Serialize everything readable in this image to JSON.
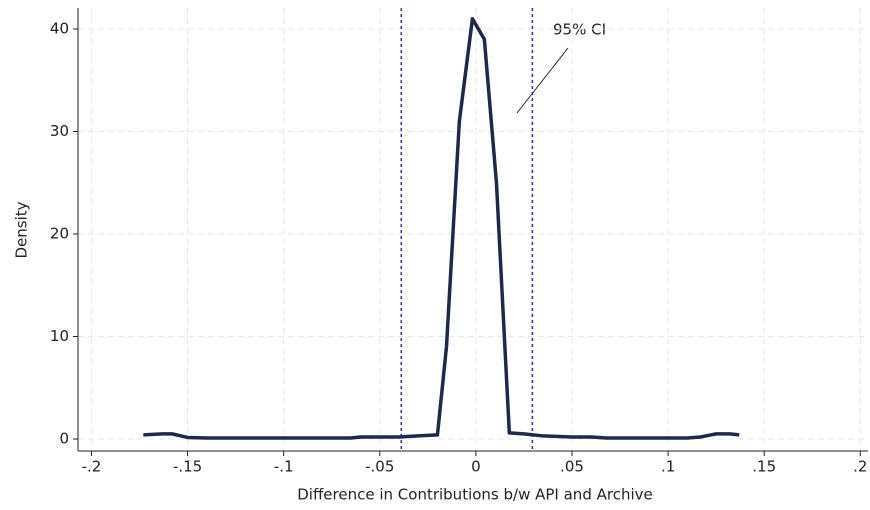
{
  "chart_data": {
    "type": "line",
    "x_label": "Difference in Contributions b/w API and Archive",
    "y_label": "Density",
    "annotation": "95% CI",
    "x": [
      -0.173,
      -0.163,
      -0.158,
      -0.15,
      -0.14,
      -0.065,
      -0.06,
      -0.04,
      -0.03,
      -0.02,
      -0.0153,
      -0.0086,
      -0.0018,
      0.0044,
      0.0107,
      0.0174,
      0.025,
      0.035,
      0.05,
      0.06,
      0.068,
      0.11,
      0.117,
      0.125,
      0.132,
      0.137
    ],
    "values": [
      0.4,
      0.5,
      0.5,
      0.15,
      0.1,
      0.1,
      0.2,
      0.2,
      0.3,
      0.4,
      9,
      31,
      41,
      39,
      25,
      0.6,
      0.5,
      0.3,
      0.2,
      0.2,
      0.1,
      0.1,
      0.2,
      0.5,
      0.5,
      0.4
    ],
    "color": "#1c2a4e",
    "vlines": [
      -0.0388,
      0.0294
    ],
    "vline_color": "#1f2fc0",
    "xlim": [
      -0.207,
      0.204
    ],
    "ylim": [
      -1.17,
      42.05
    ],
    "xticks": [
      {
        "value": -0.2,
        "label": "-.2"
      },
      {
        "value": -0.15,
        "label": "-.15"
      },
      {
        "value": -0.1,
        "label": "-.1"
      },
      {
        "value": -0.05,
        "label": "-.05"
      },
      0,
      {
        "value": 0.05,
        "label": ".05"
      },
      {
        "value": 0.1,
        "label": ".1"
      },
      {
        "value": 0.15,
        "label": ".15"
      },
      {
        "value": 0.2,
        "label": ".2"
      }
    ],
    "yticks": [
      0,
      10,
      20,
      30,
      40
    ],
    "grid": true
  }
}
